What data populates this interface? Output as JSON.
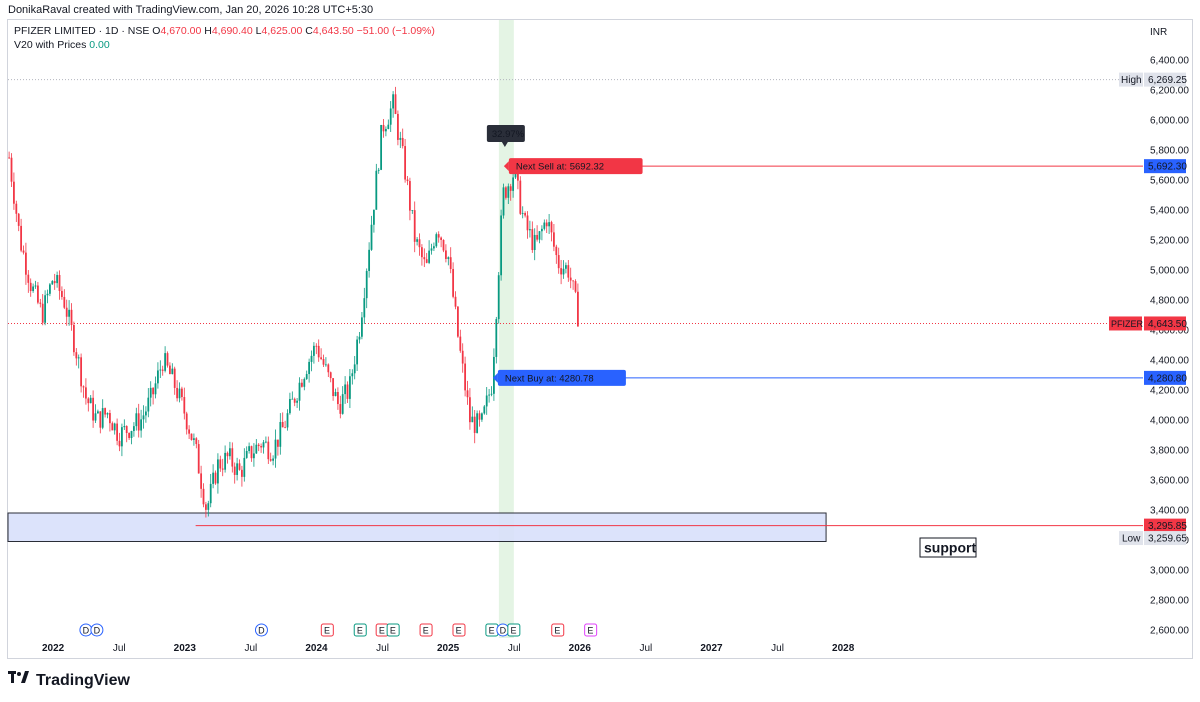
{
  "header": {
    "credit": "DonikaRaval created with TradingView.com, Jan 20, 2026 10:28 UTC+5:30"
  },
  "legend": {
    "symbol": "PFIZER LIMITED · 1D · NSE",
    "open_label": "O",
    "open": "4,670.00",
    "high_label": "H",
    "high": "4,690.40",
    "low_label": "L",
    "low": "4,625.00",
    "close_label": "C",
    "close": "4,643.50",
    "change": "−51.00 (−1.09%)",
    "indicator": "V20 with Prices",
    "indicator_value": "0.00"
  },
  "price_axis": {
    "currency": "INR"
  },
  "brand": {
    "name": "TradingView"
  },
  "colors": {
    "up": "#089981",
    "down": "#f23645",
    "blue": "#2962ff",
    "support_fill": "#d9e1fb"
  },
  "chart_data": {
    "type": "candlestick",
    "title": "",
    "symbol": "PFIZER",
    "ylim": [
      2500,
      6560
    ],
    "y_ticks": [
      2600,
      2800,
      3000,
      3200,
      3400,
      3600,
      3800,
      4000,
      4200,
      4400,
      4600,
      4800,
      5000,
      5200,
      5400,
      5600,
      5800,
      6000,
      6200,
      6400
    ],
    "y_tick_labels": [
      "2,600.00",
      "2,800.00",
      "3,000.00",
      "3,200.00",
      "3,400.00",
      "3,600.00",
      "3,800.00",
      "4,000.00",
      "4,200.00",
      "4,400.00",
      "4,600.00",
      "4,800.00",
      "5,000.00",
      "5,200.00",
      "5,400.00",
      "5,600.00",
      "5,800.00",
      "6,000.00",
      "6,200.00",
      "6,400.00"
    ],
    "x_ticks": [
      {
        "label": "2022",
        "date": "2022-01"
      },
      {
        "label": "Jul",
        "date": "2022-07"
      },
      {
        "label": "2023",
        "date": "2023-01"
      },
      {
        "label": "Jul",
        "date": "2023-07"
      },
      {
        "label": "2024",
        "date": "2024-01"
      },
      {
        "label": "Jul",
        "date": "2024-07"
      },
      {
        "label": "2025",
        "date": "2025-01"
      },
      {
        "label": "Jul",
        "date": "2025-07"
      },
      {
        "label": "2026",
        "date": "2026-01"
      },
      {
        "label": "Jul",
        "date": "2026-07"
      },
      {
        "label": "2027",
        "date": "2027-01"
      },
      {
        "label": "Jul",
        "date": "2027-07"
      },
      {
        "label": "2028",
        "date": "2028-01"
      }
    ],
    "x_range": [
      "2021-09",
      "2028-09"
    ],
    "price_path": [
      [
        "2021-09",
        5750
      ],
      [
        "2021-10",
        5200
      ],
      [
        "2021-11",
        4900
      ],
      [
        "2021-12",
        4700
      ],
      [
        "2022-01",
        4950
      ],
      [
        "2022-02",
        4800
      ],
      [
        "2022-03",
        4500
      ],
      [
        "2022-04",
        4150
      ],
      [
        "2022-05",
        4000
      ],
      [
        "2022-06",
        4050
      ],
      [
        "2022-07",
        3900
      ],
      [
        "2022-08",
        3950
      ],
      [
        "2022-09",
        4000
      ],
      [
        "2022-10",
        4150
      ],
      [
        "2022-11",
        4400
      ],
      [
        "2022-12",
        4250
      ],
      [
        "2023-01",
        4050
      ],
      [
        "2023-02",
        3800
      ],
      [
        "2023-03",
        3400
      ],
      [
        "2023-04",
        3700
      ],
      [
        "2023-05",
        3750
      ],
      [
        "2023-06",
        3650
      ],
      [
        "2023-07",
        3780
      ],
      [
        "2023-08",
        3850
      ],
      [
        "2023-09",
        3800
      ],
      [
        "2023-10",
        3950
      ],
      [
        "2023-11",
        4150
      ],
      [
        "2023-12",
        4350
      ],
      [
        "2024-01",
        4500
      ],
      [
        "2024-02",
        4300
      ],
      [
        "2024-03",
        4100
      ],
      [
        "2024-04",
        4200
      ],
      [
        "2024-05",
        4650
      ],
      [
        "2024-06",
        5300
      ],
      [
        "2024-07",
        5950
      ],
      [
        "2024-08",
        6100
      ],
      [
        "2024-09",
        5700
      ],
      [
        "2024-10",
        5200
      ],
      [
        "2024-11",
        5000
      ],
      [
        "2024-12",
        5300
      ],
      [
        "2025-01",
        5100
      ],
      [
        "2025-02",
        4500
      ],
      [
        "2025-03",
        4000
      ],
      [
        "2025-04",
        3950
      ],
      [
        "2025-05",
        4250
      ],
      [
        "2025-06",
        5500
      ],
      [
        "2025-07",
        5650
      ],
      [
        "2025-08",
        5300
      ],
      [
        "2025-09",
        5150
      ],
      [
        "2025-10",
        5350
      ],
      [
        "2025-11",
        5050
      ],
      [
        "2025-12",
        5000
      ],
      [
        "2026-01",
        4643.5
      ]
    ],
    "high": {
      "label": "High",
      "value": "6,269.25",
      "date": "2024-07"
    },
    "low": {
      "label": "Low",
      "value": "3,259.65",
      "date": "2023-03"
    },
    "last_price": {
      "label": "PFIZER",
      "value": "4,643.50",
      "price": 4643.5
    },
    "sell_line": {
      "label": "Next Sell at: 5692.32",
      "axis_value": "5,692.30",
      "price": 5692.3,
      "from_date": "2025-06"
    },
    "buy_line": {
      "label": "Next Buy at: 4280.78",
      "axis_value": "4,280.80",
      "price": 4280.8,
      "from_date": "2025-05"
    },
    "support_line": {
      "axis_value": "3,295.85",
      "price": 3295.85,
      "from_date": "2023-02"
    },
    "support_zone": {
      "label": "support",
      "from_date": "2021-09",
      "to_date": "2027-11",
      "top_price": 3380,
      "bottom_price": 3190
    },
    "signal_percent": {
      "label": "32.97%",
      "date": "2025-06",
      "price": 5780
    },
    "highlight_dates": [
      "2025-06",
      "2025-07"
    ],
    "event_markers": [
      {
        "type": "D",
        "date": "2022-04"
      },
      {
        "type": "D",
        "date": "2022-05"
      },
      {
        "type": "D",
        "date": "2023-08"
      },
      {
        "type": "E",
        "date": "2024-02"
      },
      {
        "type": "E",
        "date": "2024-05"
      },
      {
        "type": "E",
        "date": "2024-07"
      },
      {
        "type": "E",
        "date": "2024-08"
      },
      {
        "type": "E",
        "date": "2024-11"
      },
      {
        "type": "E",
        "date": "2025-02"
      },
      {
        "type": "E",
        "date": "2025-05"
      },
      {
        "type": "D",
        "date": "2025-06"
      },
      {
        "type": "E",
        "date": "2025-07"
      },
      {
        "type": "E",
        "date": "2025-11"
      },
      {
        "type": "E",
        "date": "2026-02"
      }
    ]
  }
}
